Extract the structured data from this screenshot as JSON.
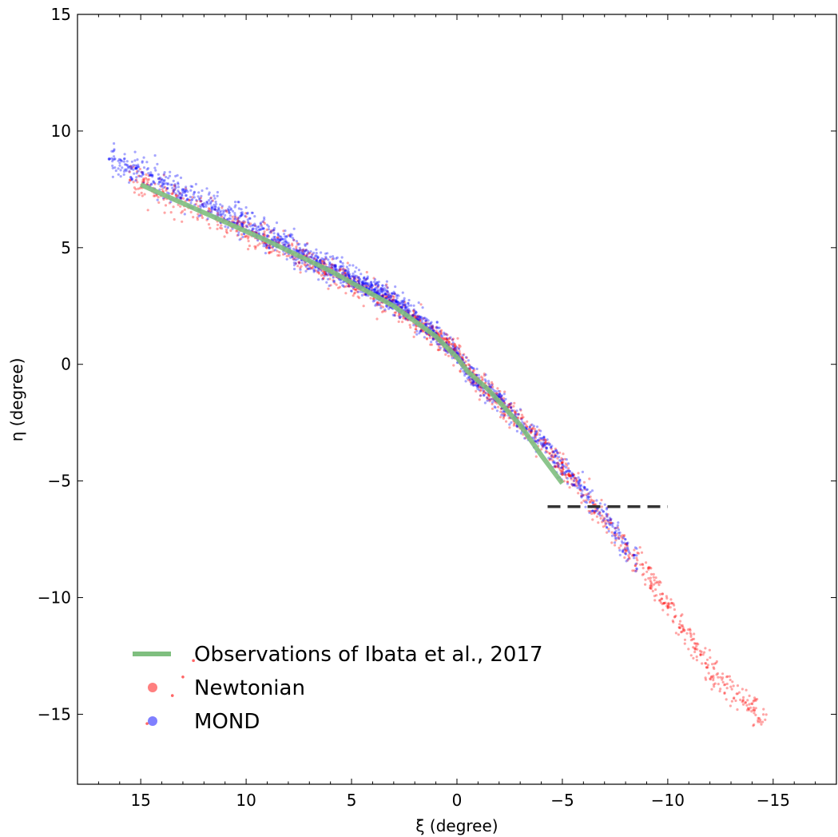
{
  "chart_data": {
    "type": "scatter",
    "title": "",
    "xlabel": "ξ (degree)",
    "ylabel": "η (degree)",
    "xlim": [
      18,
      -18
    ],
    "ylim": [
      -18,
      15
    ],
    "x_inverted": true,
    "xticks": [
      {
        "value": 15,
        "label": "15"
      },
      {
        "value": 10,
        "label": "10"
      },
      {
        "value": 5,
        "label": "5"
      },
      {
        "value": 0,
        "label": "0"
      },
      {
        "value": -5,
        "label": "−5"
      },
      {
        "value": -10,
        "label": "−10"
      },
      {
        "value": -15,
        "label": "−15"
      }
    ],
    "yticks": [
      {
        "value": 15,
        "label": "15"
      },
      {
        "value": 10,
        "label": "10"
      },
      {
        "value": 5,
        "label": "5"
      },
      {
        "value": 0,
        "label": "0"
      },
      {
        "value": -5,
        "label": "−5"
      },
      {
        "value": -10,
        "label": "−10"
      },
      {
        "value": -15,
        "label": "−15"
      }
    ],
    "grid": false,
    "legend_placement": "lower-left",
    "series": [
      {
        "name": "Observations of Ibata et al., 2017",
        "kind": "line",
        "color": "#7fbf7f",
        "points": [
          [
            15,
            7.7
          ],
          [
            12,
            6.5
          ],
          [
            9,
            5.3
          ],
          [
            6,
            4.0
          ],
          [
            3,
            2.5
          ],
          [
            1,
            1.2
          ],
          [
            0,
            0.3
          ],
          [
            -0.5,
            -0.3
          ],
          [
            -1.5,
            -1.1
          ],
          [
            -3,
            -2.6
          ],
          [
            -4,
            -3.9
          ],
          [
            -5,
            -5.1
          ]
        ]
      },
      {
        "name": "Newtonian",
        "kind": "scatter",
        "color": "#ff0000",
        "ridge": [
          [
            15.5,
            7.9
          ],
          [
            12,
            6.6
          ],
          [
            9,
            5.3
          ],
          [
            6,
            4.0
          ],
          [
            3,
            2.6
          ],
          [
            1,
            1.2
          ],
          [
            0,
            0.5
          ],
          [
            -0.5,
            -0.3
          ],
          [
            -2,
            -1.6
          ],
          [
            -4,
            -3.4
          ],
          [
            -6,
            -5.5
          ],
          [
            -7.5,
            -7.2
          ],
          [
            -9,
            -9.0
          ],
          [
            -10.5,
            -11.0
          ],
          [
            -12,
            -13.0
          ],
          [
            -14.7,
            -15.4
          ]
        ],
        "spread": 0.22,
        "count": 1600,
        "outliers": [
          [
            15.5,
            7.9
          ],
          [
            12.5,
            -12.7
          ],
          [
            13.0,
            -13.4
          ],
          [
            13.5,
            -14.2
          ],
          [
            14.7,
            -15.4
          ]
        ]
      },
      {
        "name": "MOND",
        "kind": "scatter",
        "color": "#0000ff",
        "ridge": [
          [
            16.5,
            8.8
          ],
          [
            15,
            8.2
          ],
          [
            12,
            6.9
          ],
          [
            9,
            5.5
          ],
          [
            6,
            4.1
          ],
          [
            3,
            2.7
          ],
          [
            1,
            1.3
          ],
          [
            0,
            0.4
          ],
          [
            -0.5,
            -0.3
          ],
          [
            -2,
            -1.6
          ],
          [
            -4,
            -3.4
          ],
          [
            -6,
            -5.4
          ],
          [
            -7.5,
            -7.2
          ],
          [
            -8.5,
            -8.3
          ]
        ],
        "spread": 0.22,
        "count": 1800,
        "outliers": [
          [
            16.5,
            8.8
          ],
          [
            15.2,
            8.4
          ]
        ]
      },
      {
        "name": "",
        "kind": "dashed-line",
        "color": "#333333",
        "points": [
          [
            -4.3,
            -6.1
          ],
          [
            -10,
            -6.1
          ]
        ]
      }
    ]
  }
}
